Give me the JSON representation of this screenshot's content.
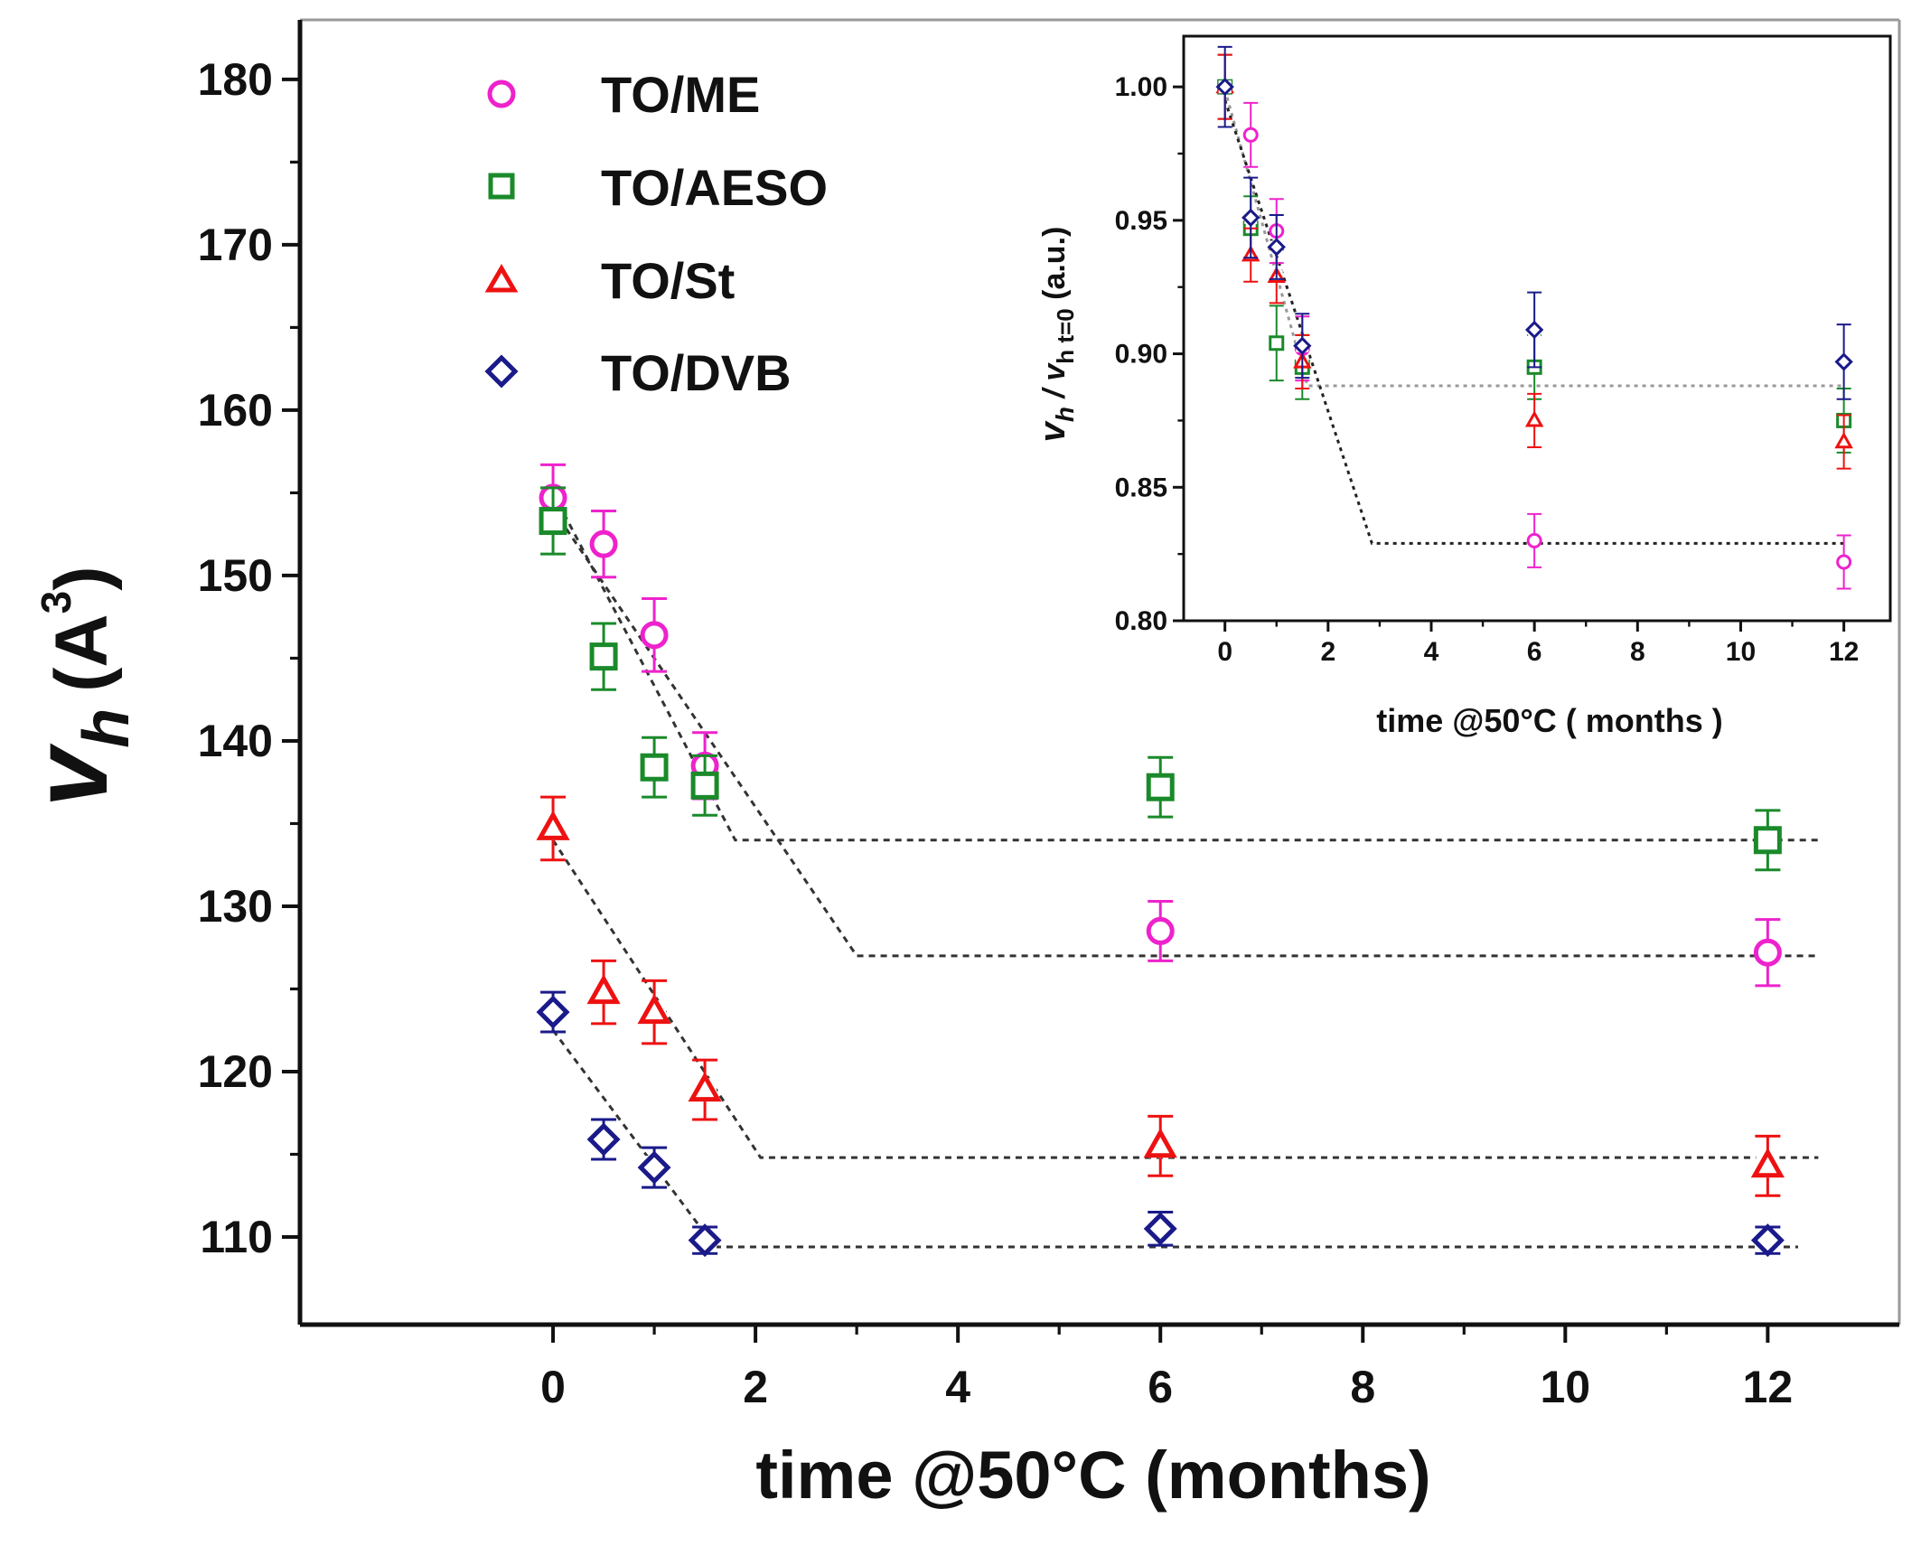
{
  "chart_data": [
    {
      "id": "main",
      "type": "scatter",
      "title": "",
      "xlabel": "time @50°C  (months)",
      "ylabel": {
        "symbol": "v",
        "subscript": "h",
        "unit": "(A",
        "unit_sup": "3",
        "unit_close": ")"
      },
      "xlim": [
        -2.5,
        13.3
      ],
      "ylim": [
        104.7,
        183.6
      ],
      "xticks": [
        0,
        2,
        4,
        6,
        8,
        10,
        12
      ],
      "yticks": [
        110,
        120,
        130,
        140,
        150,
        160,
        170,
        180
      ],
      "legend_position": "top-left",
      "series": [
        {
          "name": "TO/ME",
          "marker": "circle",
          "color": "#ee22cc",
          "x": [
            0,
            0.5,
            1,
            1.5,
            6,
            12
          ],
          "y": [
            154.7,
            151.9,
            146.4,
            138.5,
            128.5,
            127.2
          ],
          "err": [
            2.0,
            2.0,
            2.2,
            2.0,
            1.8,
            2.0
          ]
        },
        {
          "name": "TO/AESO",
          "marker": "square",
          "color": "#1a8a2a",
          "x": [
            0,
            0.5,
            1,
            1.5,
            6,
            12
          ],
          "y": [
            153.3,
            145.1,
            138.4,
            137.3,
            137.2,
            134.0
          ],
          "err": [
            2.0,
            2.0,
            1.8,
            1.8,
            1.8,
            1.8
          ]
        },
        {
          "name": "TO/St",
          "marker": "triangle",
          "color": "#ee1111",
          "x": [
            0,
            0.5,
            1,
            1.5,
            6,
            12
          ],
          "y": [
            134.7,
            124.8,
            123.6,
            118.9,
            115.5,
            114.3
          ],
          "err": [
            1.9,
            1.9,
            1.9,
            1.8,
            1.8,
            1.8
          ]
        },
        {
          "name": "TO/DVB",
          "marker": "diamond",
          "color": "#1a1a8a",
          "x": [
            0,
            0.5,
            1,
            1.5,
            6,
            12
          ],
          "y": [
            123.6,
            115.9,
            114.2,
            109.8,
            110.5,
            109.8
          ],
          "err": [
            1.2,
            1.2,
            1.2,
            0.8,
            1.0,
            0.8
          ]
        }
      ],
      "fit_lines": [
        {
          "x": [
            0,
            1.8,
            12.5
          ],
          "y": [
            155.0,
            134.0,
            134.0
          ]
        },
        {
          "x": [
            0,
            3.0,
            12.5
          ],
          "y": [
            154.0,
            127.0,
            127.0
          ]
        },
        {
          "x": [
            0,
            2.05,
            12.5
          ],
          "y": [
            134.0,
            114.8,
            114.8
          ]
        },
        {
          "x": [
            0,
            1.6,
            12.3
          ],
          "y": [
            122.5,
            109.4,
            109.4
          ]
        }
      ]
    },
    {
      "id": "inset",
      "type": "scatter",
      "title": "",
      "xlabel": "time @50°C  ( months )",
      "ylabel": {
        "symbol": "v",
        "subscript": "h",
        "mid": " / v",
        "subscript2": "h t=0",
        "unit": " (a.u.)"
      },
      "xlim": [
        -0.8,
        12.9
      ],
      "ylim": [
        0.8,
        1.019
      ],
      "xticks": [
        0,
        2,
        4,
        6,
        8,
        10,
        12
      ],
      "yticks": [
        0.8,
        0.85,
        0.9,
        0.95,
        1.0
      ],
      "ytick_labels": [
        "0.80",
        "0.85",
        "0.90",
        "0.95",
        "1.00"
      ],
      "series": [
        {
          "name": "TO/ME",
          "marker": "circle",
          "color": "#ee22cc",
          "x": [
            0,
            0.5,
            1,
            1.5,
            6,
            12
          ],
          "y": [
            1.0,
            0.982,
            0.946,
            0.902,
            0.83,
            0.822
          ],
          "err": [
            0.012,
            0.012,
            0.012,
            0.012,
            0.01,
            0.01
          ]
        },
        {
          "name": "TO/AESO",
          "marker": "square",
          "color": "#1a8a2a",
          "x": [
            0,
            0.5,
            1,
            1.5,
            6,
            12
          ],
          "y": [
            1.0,
            0.947,
            0.904,
            0.895,
            0.895,
            0.875
          ],
          "err": [
            0.012,
            0.012,
            0.014,
            0.012,
            0.012,
            0.012
          ]
        },
        {
          "name": "TO/St",
          "marker": "triangle",
          "color": "#ee1111",
          "x": [
            0,
            0.5,
            1,
            1.5,
            6,
            12
          ],
          "y": [
            1.0,
            0.937,
            0.929,
            0.897,
            0.875,
            0.867
          ],
          "err": [
            0.012,
            0.01,
            0.01,
            0.01,
            0.01,
            0.01
          ]
        },
        {
          "name": "TO/DVB",
          "marker": "diamond",
          "color": "#1a1a8a",
          "x": [
            0,
            0.5,
            1,
            1.5,
            6,
            12
          ],
          "y": [
            1.0,
            0.951,
            0.94,
            0.903,
            0.909,
            0.897
          ],
          "err": [
            0.015,
            0.015,
            0.012,
            0.012,
            0.014,
            0.014
          ]
        }
      ],
      "fit_lines": [
        {
          "x": [
            0,
            1.6,
            12.0
          ],
          "y": [
            0.999,
            0.888,
            0.888
          ],
          "color": "#999999"
        },
        {
          "x": [
            0,
            2.85,
            12.0
          ],
          "y": [
            0.995,
            0.829,
            0.829
          ],
          "color": "#222222"
        }
      ]
    }
  ]
}
